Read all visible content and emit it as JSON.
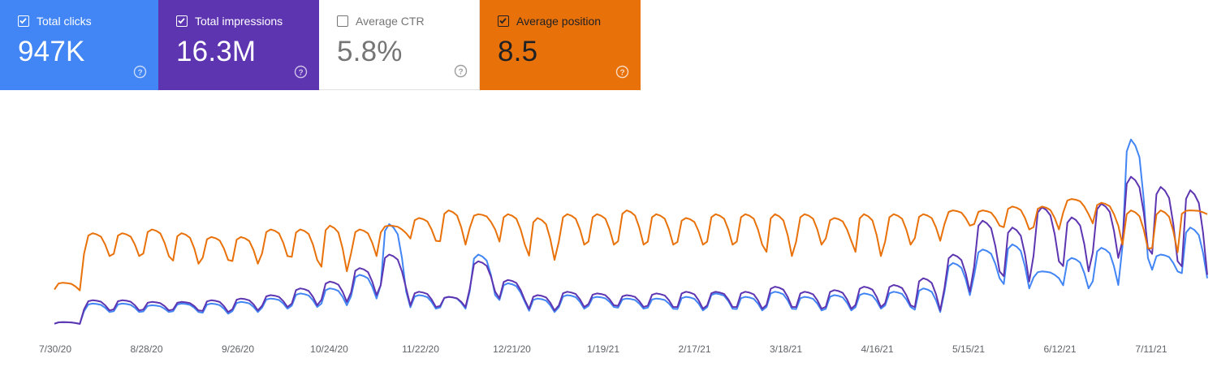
{
  "metrics": [
    {
      "key": "clicks",
      "label": "Total clicks",
      "value": "947K",
      "checked": true,
      "color": "#4285f4"
    },
    {
      "key": "impressions",
      "label": "Total impressions",
      "value": "16.3M",
      "checked": true,
      "color": "#5e35b1"
    },
    {
      "key": "ctr",
      "label": "Average CTR",
      "value": "5.8%",
      "checked": false,
      "color": "#ffffff"
    },
    {
      "key": "position",
      "label": "Average position",
      "value": "8.5",
      "checked": true,
      "color": "#e8710a"
    }
  ],
  "icons": {
    "checkbox": "checkbox-icon",
    "help": "help-circle-icon"
  },
  "chart_data": {
    "type": "line",
    "x_tick_labels": [
      "7/30/20",
      "8/28/20",
      "9/26/20",
      "10/24/20",
      "11/22/20",
      "12/21/20",
      "1/19/21",
      "2/17/21",
      "3/18/21",
      "4/16/21",
      "5/15/21",
      "6/12/21",
      "7/11/21"
    ],
    "xlim": [
      "7/30/20",
      "7/28/21"
    ],
    "grid": false,
    "legend": "metric cards above chart",
    "y_axis": "hidden, independent scales per series",
    "series": [
      {
        "name": "Total clicks",
        "color": "#4285f4",
        "weekly_peaks": [
          2,
          13,
          13,
          12,
          13,
          13,
          14,
          16,
          19,
          22,
          30,
          60,
          18,
          17,
          42,
          25,
          16,
          18,
          17,
          16,
          16,
          17,
          19,
          17,
          20,
          17,
          18,
          19,
          20,
          22,
          37,
          45,
          48,
          32,
          40,
          46,
          110,
          42,
          58
        ],
        "weekly_lows": [
          1,
          8,
          8,
          8,
          8,
          7,
          8,
          10,
          11,
          12,
          16,
          20,
          10,
          10,
          18,
          14,
          8,
          10,
          11,
          10,
          10,
          9,
          10,
          9,
          10,
          9,
          9,
          10,
          11,
          8,
          18,
          28,
          22,
          28,
          22,
          24,
          40,
          32,
          28
        ]
      },
      {
        "name": "Total impressions",
        "color": "#5e35b1",
        "weekly_peaks": [
          2,
          15,
          15,
          14,
          14,
          15,
          16,
          18,
          22,
          26,
          34,
          42,
          20,
          17,
          38,
          27,
          18,
          20,
          19,
          18,
          19,
          20,
          20,
          20,
          23,
          20,
          21,
          23,
          24,
          28,
          42,
          62,
          58,
          70,
          64,
          72,
          88,
          82,
          80
        ],
        "weekly_lows": [
          1,
          9,
          9,
          9,
          9,
          8,
          9,
          11,
          12,
          14,
          18,
          22,
          11,
          11,
          20,
          15,
          9,
          11,
          12,
          11,
          11,
          10,
          11,
          10,
          11,
          10,
          10,
          11,
          12,
          9,
          20,
          32,
          26,
          38,
          32,
          40,
          46,
          38,
          30
        ]
      },
      {
        "name": "Average position",
        "color": "#e8710a",
        "weekly_peaks": [
          8.9,
          7.6,
          7.6,
          7.5,
          7.6,
          7.7,
          7.7,
          7.5,
          7.5,
          7.4,
          7.5,
          7.4,
          7.2,
          7.0,
          7.1,
          7.1,
          7.2,
          7.1,
          7.1,
          7.0,
          7.1,
          7.2,
          7.1,
          7.1,
          7.1,
          7.1,
          7.2,
          7.1,
          7.1,
          7.1,
          7.0,
          7.0,
          6.9,
          6.9,
          6.7,
          6.8,
          7.0,
          7.0,
          7.0
        ],
        "weekly_lows": [
          9.1,
          8.2,
          8.2,
          8.2,
          8.4,
          8.3,
          8.4,
          8.2,
          8.3,
          8.6,
          8.2,
          7.6,
          7.8,
          7.9,
          7.5,
          7.9,
          8.3,
          7.9,
          7.9,
          7.9,
          7.9,
          7.9,
          7.9,
          7.9,
          8.2,
          7.9,
          7.8,
          8.2,
          7.9,
          7.8,
          7.4,
          7.4,
          7.5,
          7.5,
          7.1,
          7.4,
          8.0,
          8.1,
          7.1
        ]
      }
    ]
  }
}
